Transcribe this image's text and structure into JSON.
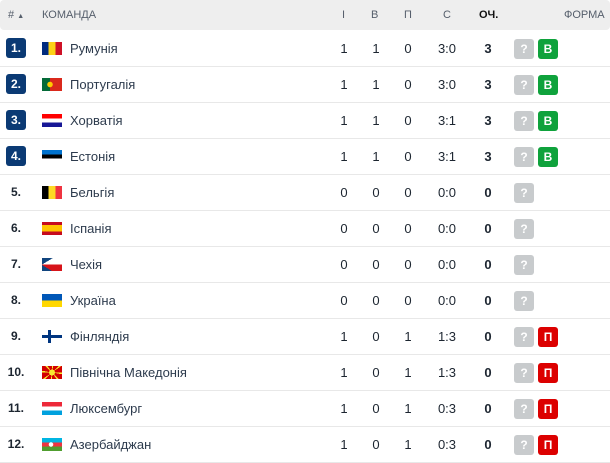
{
  "header": {
    "rank": "#",
    "sort_icon": "triangle-up",
    "team": "КОМАНДА",
    "played": "І",
    "won": "В",
    "lost": "П",
    "score": "С",
    "points": "ОЧ.",
    "form": "ФОРМА"
  },
  "colors": {
    "qualified": "#0b3a74",
    "win": "#0fa23c",
    "loss": "#dc0000",
    "unknown": "#c8cbcd"
  },
  "rows": [
    {
      "rank": "1.",
      "team": "Румунія",
      "flag": "romania",
      "p": "1",
      "w": "1",
      "l": "0",
      "s": "3:0",
      "pts": "3",
      "form": [
        "?",
        "В"
      ],
      "q": true
    },
    {
      "rank": "2.",
      "team": "Португалія",
      "flag": "portugal",
      "p": "1",
      "w": "1",
      "l": "0",
      "s": "3:0",
      "pts": "3",
      "form": [
        "?",
        "В"
      ],
      "q": true
    },
    {
      "rank": "3.",
      "team": "Хорватія",
      "flag": "croatia",
      "p": "1",
      "w": "1",
      "l": "0",
      "s": "3:1",
      "pts": "3",
      "form": [
        "?",
        "В"
      ],
      "q": true
    },
    {
      "rank": "4.",
      "team": "Естонія",
      "flag": "estonia",
      "p": "1",
      "w": "1",
      "l": "0",
      "s": "3:1",
      "pts": "3",
      "form": [
        "?",
        "В"
      ],
      "q": true
    },
    {
      "rank": "5.",
      "team": "Бельгія",
      "flag": "belgium",
      "p": "0",
      "w": "0",
      "l": "0",
      "s": "0:0",
      "pts": "0",
      "form": [
        "?"
      ],
      "q": false
    },
    {
      "rank": "6.",
      "team": "Іспанія",
      "flag": "spain",
      "p": "0",
      "w": "0",
      "l": "0",
      "s": "0:0",
      "pts": "0",
      "form": [
        "?"
      ],
      "q": false
    },
    {
      "rank": "7.",
      "team": "Чехія",
      "flag": "czechia",
      "p": "0",
      "w": "0",
      "l": "0",
      "s": "0:0",
      "pts": "0",
      "form": [
        "?"
      ],
      "q": false
    },
    {
      "rank": "8.",
      "team": "Україна",
      "flag": "ukraine",
      "p": "0",
      "w": "0",
      "l": "0",
      "s": "0:0",
      "pts": "0",
      "form": [
        "?"
      ],
      "q": false
    },
    {
      "rank": "9.",
      "team": "Фінляндія",
      "flag": "finland",
      "p": "1",
      "w": "0",
      "l": "1",
      "s": "1:3",
      "pts": "0",
      "form": [
        "?",
        "П"
      ],
      "q": false
    },
    {
      "rank": "10.",
      "team": "Північна Македонія",
      "flag": "north-macedonia",
      "p": "1",
      "w": "0",
      "l": "1",
      "s": "1:3",
      "pts": "0",
      "form": [
        "?",
        "П"
      ],
      "q": false
    },
    {
      "rank": "11.",
      "team": "Люксембург",
      "flag": "luxembourg",
      "p": "1",
      "w": "0",
      "l": "1",
      "s": "0:3",
      "pts": "0",
      "form": [
        "?",
        "П"
      ],
      "q": false
    },
    {
      "rank": "12.",
      "team": "Азербайджан",
      "flag": "azerbaijan",
      "p": "1",
      "w": "0",
      "l": "1",
      "s": "0:3",
      "pts": "0",
      "form": [
        "?",
        "П"
      ],
      "q": false
    }
  ]
}
